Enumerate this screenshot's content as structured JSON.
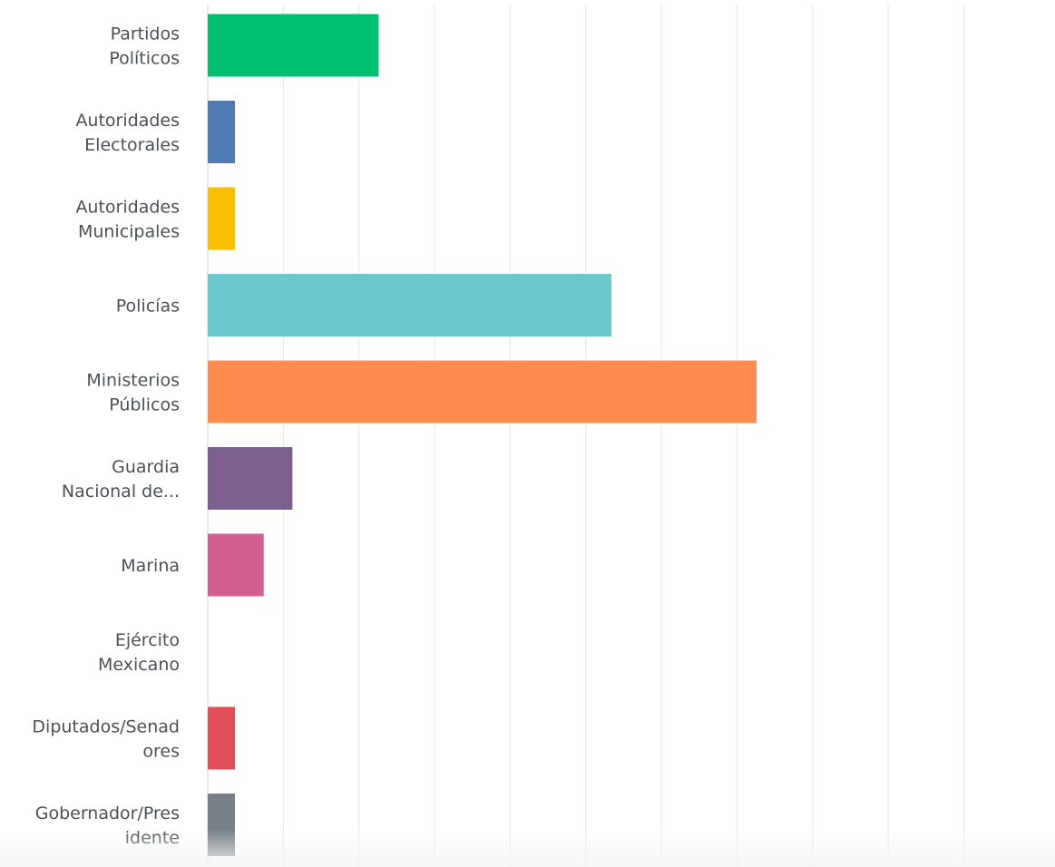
{
  "chart_data": {
    "type": "bar",
    "orientation": "horizontal",
    "categories": [
      [
        "Partidos",
        "Políticos"
      ],
      [
        "Autoridades",
        "Electorales"
      ],
      [
        "Autoridades",
        "Municipales"
      ],
      [
        "Policías"
      ],
      [
        "Ministerios",
        "Públicos"
      ],
      [
        "Guardia",
        "Nacional de..."
      ],
      [
        "Marina"
      ],
      [
        "Ejército",
        "Mexicano"
      ],
      [
        "Diputados/Senad",
        "ores"
      ],
      [
        "Gobernador/Pres",
        "idente"
      ]
    ],
    "values": [
      11.3,
      1.8,
      1.8,
      26.7,
      36.3,
      5.6,
      3.7,
      0,
      1.8,
      1.8
    ],
    "colors": [
      "#00bf6f",
      "#507cb6",
      "#f9be00",
      "#6bc8cd",
      "#ff8b4f",
      "#7d5e90",
      "#d25f90",
      "#f05b24",
      "#e04e5a",
      "#787f87"
    ],
    "xlim": [
      0,
      100
    ],
    "grid": "vertical",
    "gridline_count": 10,
    "legend": "none",
    "title": "",
    "xlabel": "",
    "ylabel": ""
  }
}
